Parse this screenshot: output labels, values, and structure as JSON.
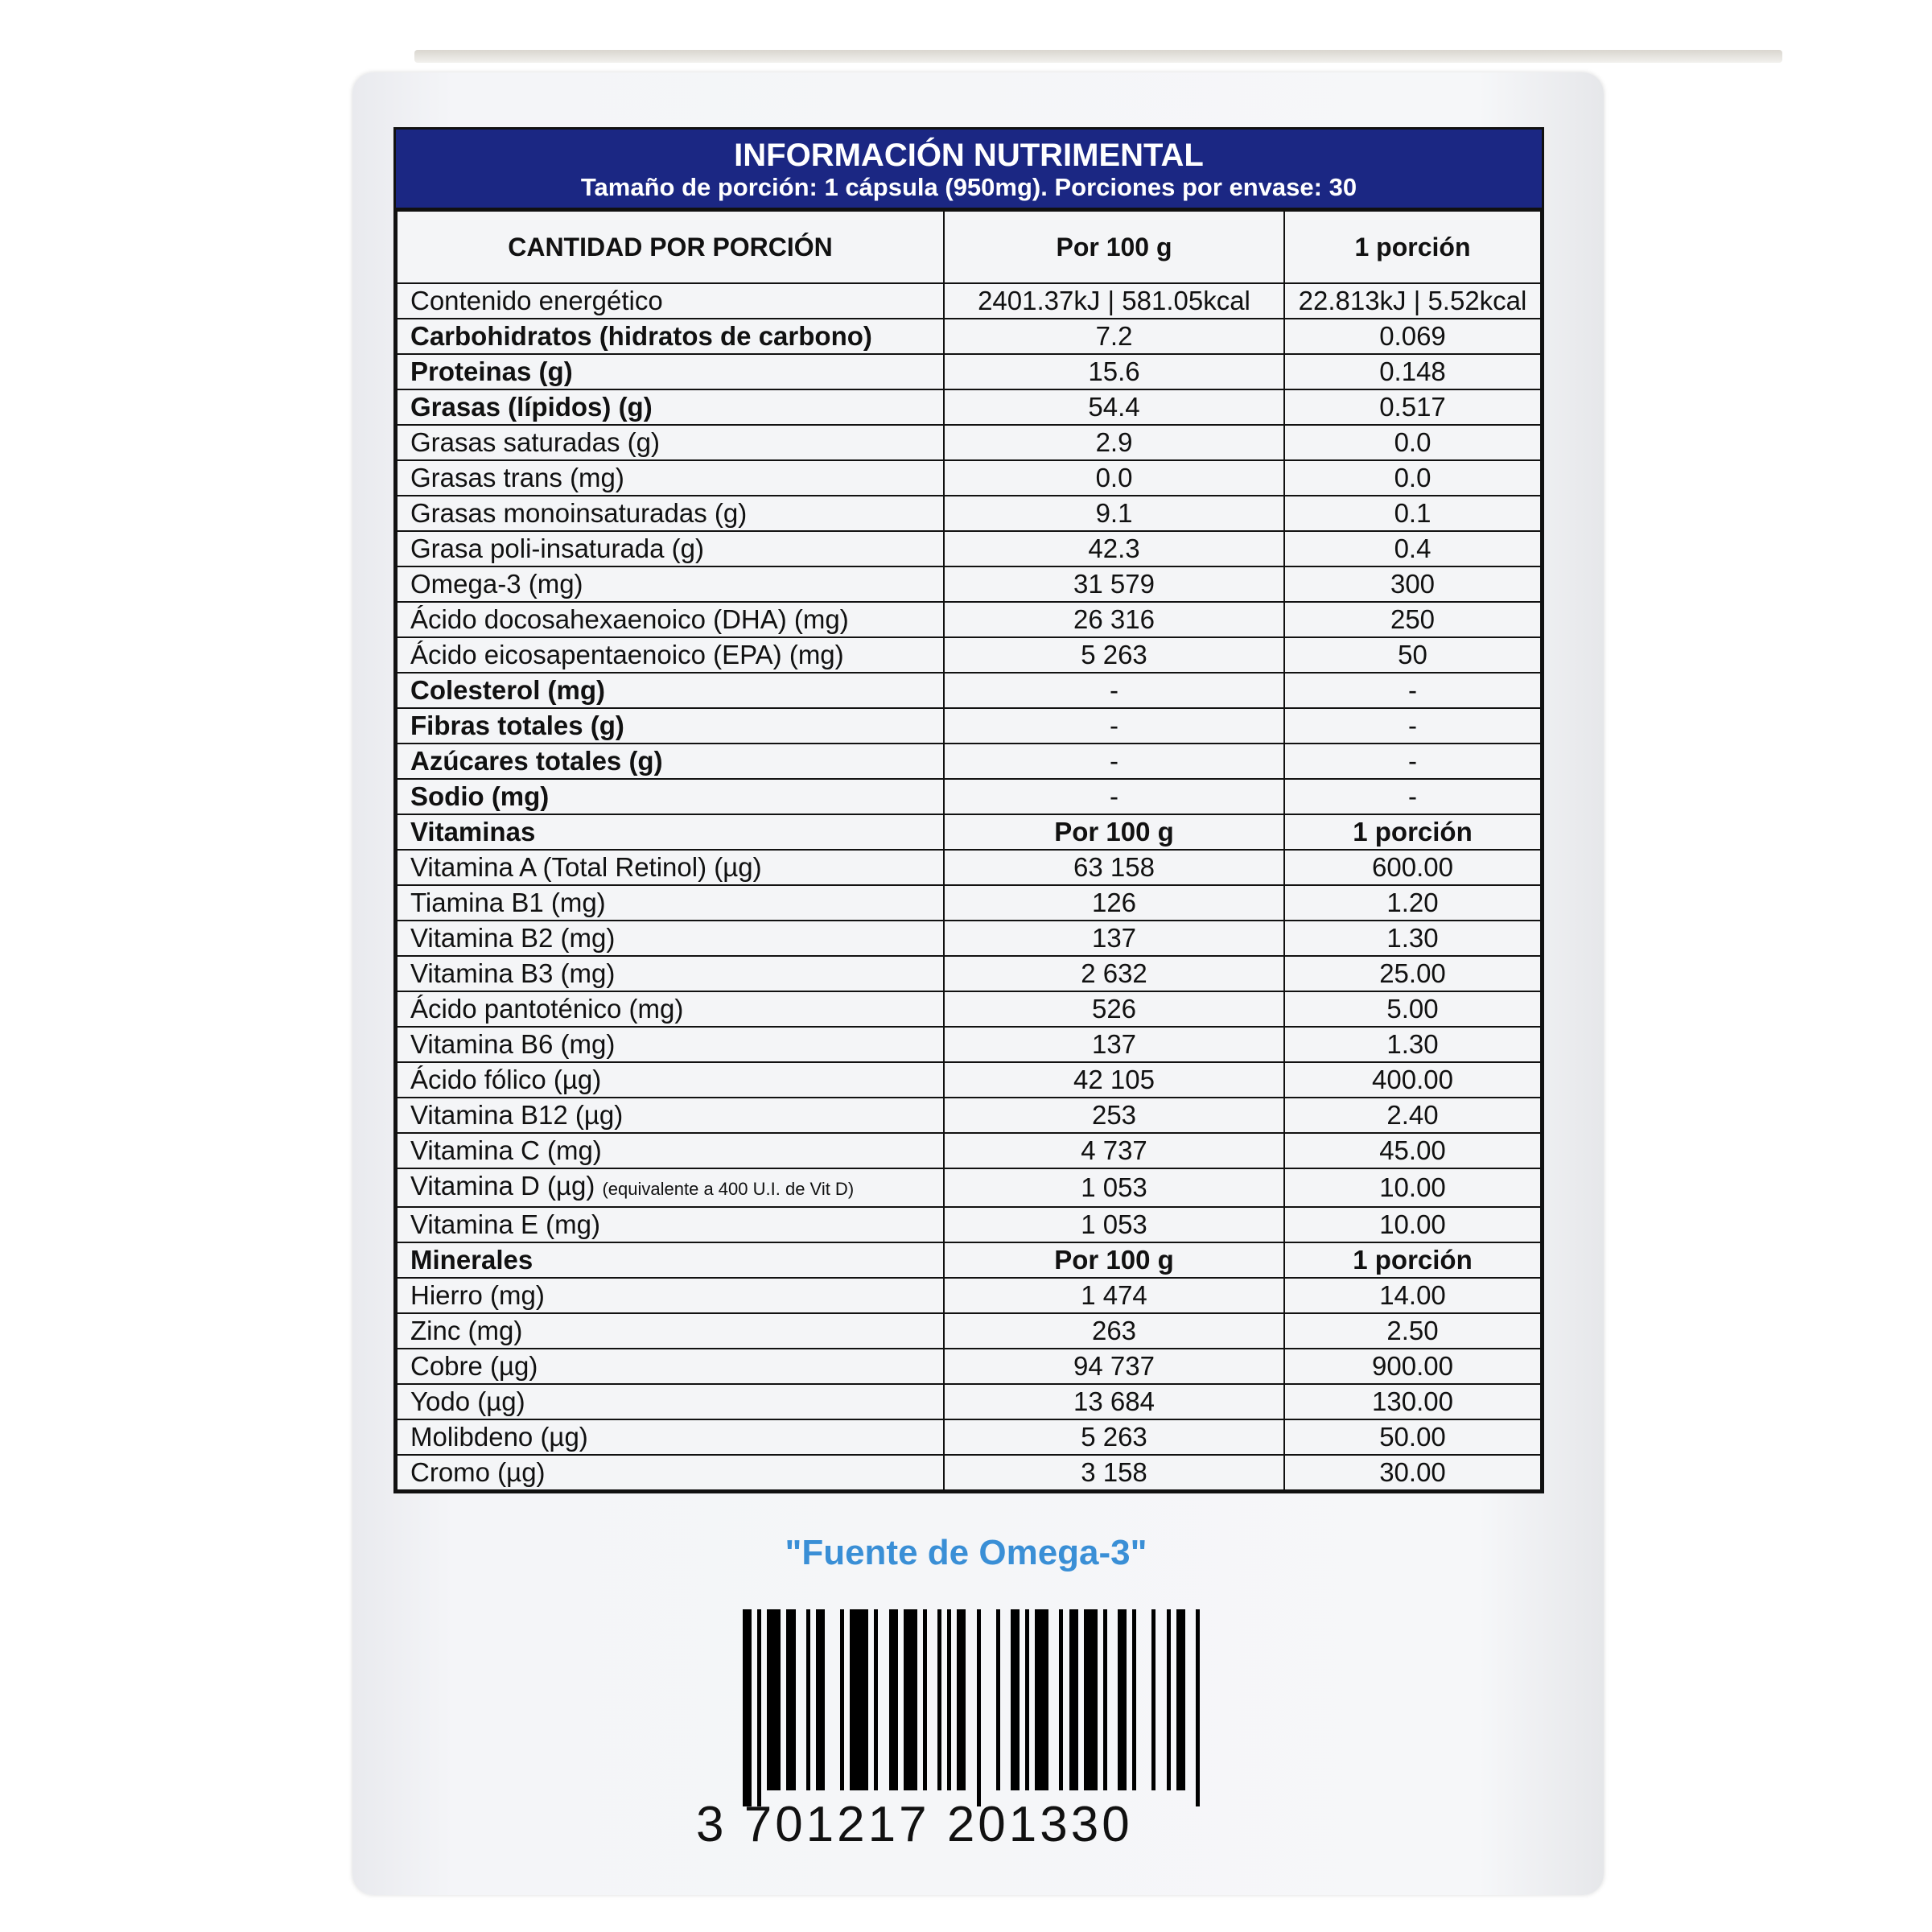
{
  "header": {
    "title": "INFORMACIÓN NUTRIMENTAL",
    "subtitle": "Tamaño de porción: 1 cápsula (950mg). Porciones por envase: 30"
  },
  "columns": [
    "CANTIDAD POR PORCIÓN",
    "Por 100 g",
    "1 porción"
  ],
  "rows": [
    {
      "label": "Contenido energético",
      "per100": "2401.37kJ | 581.05kcal",
      "portion": "22.813kJ | 5.52kcal",
      "bold": false
    },
    {
      "label": "Carbohidratos (hidratos de carbono)",
      "per100": "7.2",
      "portion": "0.069",
      "bold": true
    },
    {
      "label": "Proteinas (g)",
      "per100": "15.6",
      "portion": "0.148",
      "bold": true
    },
    {
      "label": "Grasas (lípidos) (g)",
      "per100": "54.4",
      "portion": "0.517",
      "bold": true
    },
    {
      "label": "Grasas saturadas (g)",
      "per100": "2.9",
      "portion": "0.0",
      "bold": false
    },
    {
      "label": "Grasas trans (mg)",
      "per100": "0.0",
      "portion": "0.0",
      "bold": false
    },
    {
      "label": "Grasas monoinsaturadas (g)",
      "per100": "9.1",
      "portion": "0.1",
      "bold": false
    },
    {
      "label": "Grasa poli-insaturada (g)",
      "per100": "42.3",
      "portion": "0.4",
      "bold": false
    },
    {
      "label": "Omega-3 (mg)",
      "per100": "31 579",
      "portion": "300",
      "bold": false
    },
    {
      "label": "Ácido docosahexaenoico (DHA) (mg)",
      "per100": "26 316",
      "portion": "250",
      "bold": false
    },
    {
      "label": "Ácido eicosapentaenoico (EPA) (mg)",
      "per100": "5 263",
      "portion": "50",
      "bold": false
    },
    {
      "label": "Colesterol (mg)",
      "per100": "-",
      "portion": "-",
      "bold": true
    },
    {
      "label": "Fibras totales (g)",
      "per100": "-",
      "portion": "-",
      "bold": true
    },
    {
      "label": "Azúcares totales (g)",
      "per100": "-",
      "portion": "-",
      "bold": true
    },
    {
      "label": "Sodio (mg)",
      "per100": "-",
      "portion": "-",
      "bold": true
    }
  ],
  "vitamins": {
    "heading": [
      "Vitaminas",
      "Por 100 g",
      "1 porción"
    ],
    "rows": [
      {
        "label": "Vitamina A (Total Retinol) (µg)",
        "per100": "63 158",
        "portion": "600.00"
      },
      {
        "label": "Tiamina B1 (mg)",
        "per100": "126",
        "portion": "1.20"
      },
      {
        "label": "Vitamina B2 (mg)",
        "per100": "137",
        "portion": "1.30"
      },
      {
        "label": "Vitamina B3 (mg)",
        "per100": "2 632",
        "portion": "25.00"
      },
      {
        "label": "Ácido pantoténico (mg)",
        "per100": "526",
        "portion": "5.00"
      },
      {
        "label": "Vitamina B6 (mg)",
        "per100": "137",
        "portion": "1.30"
      },
      {
        "label": "Ácido fólico (µg)",
        "per100": "42 105",
        "portion": "400.00"
      },
      {
        "label": "Vitamina B12 (µg)",
        "per100": "253",
        "portion": "2.40"
      },
      {
        "label": "Vitamina C (mg)",
        "per100": "4 737",
        "portion": "45.00"
      },
      {
        "label": "Vitamina D (µg)",
        "note": "(equivalente a 400 U.I. de Vit D)",
        "per100": "1 053",
        "portion": "10.00"
      },
      {
        "label": "Vitamina E (mg)",
        "per100": "1 053",
        "portion": "10.00"
      }
    ]
  },
  "minerals": {
    "heading": [
      "Minerales",
      "Por 100 g",
      "1 porción"
    ],
    "rows": [
      {
        "label": "Hierro (mg)",
        "per100": "1 474",
        "portion": "14.00"
      },
      {
        "label": "Zinc (mg)",
        "per100": "263",
        "portion": "2.50"
      },
      {
        "label": "Cobre (µg)",
        "per100": "94 737",
        "portion": "900.00"
      },
      {
        "label": "Yodo (µg)",
        "per100": "13 684",
        "portion": "130.00"
      },
      {
        "label": "Molibdeno (µg)",
        "per100": "5 263",
        "portion": "50.00"
      },
      {
        "label": "Cromo (µg)",
        "per100": "3 158",
        "portion": "30.00"
      }
    ]
  },
  "claim": "\"Fuente de Omega-3\"",
  "barcode": {
    "digits": "3 701217 201330"
  },
  "colors": {
    "band": "#1b2783",
    "claim": "#3a8fd6"
  }
}
